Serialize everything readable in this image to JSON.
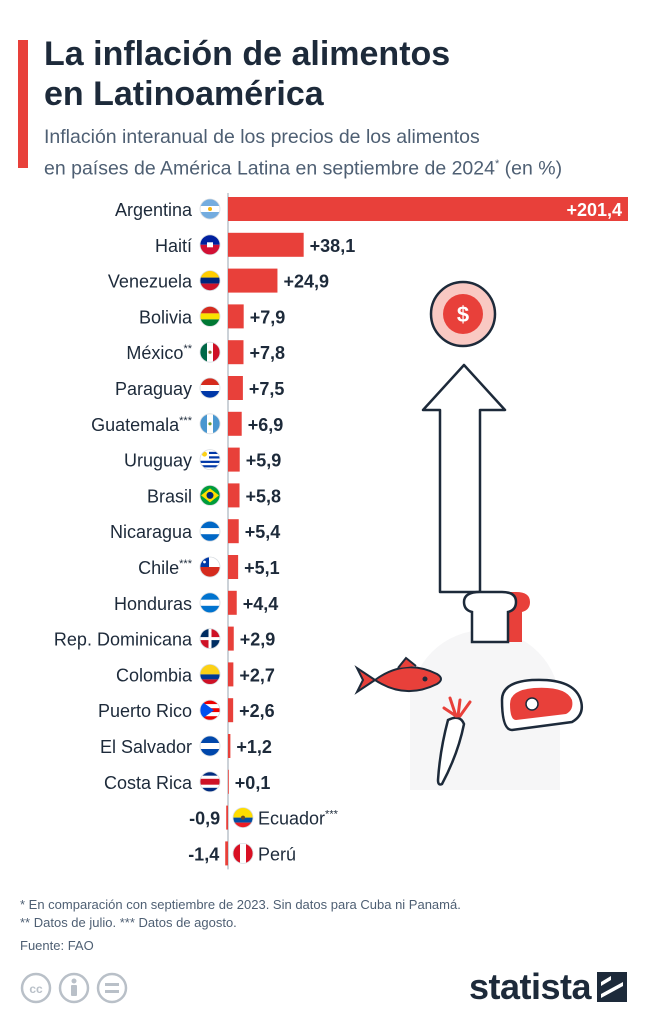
{
  "header": {
    "title_line1": "La inflación de alimentos",
    "title_line2": "en Latinoamérica",
    "subtitle_line1": "Inflación interanual de los precios de los alimentos",
    "subtitle_line2": "en países de América Latina en septiembre de 2024",
    "subtitle_mark": "*",
    "subtitle_unit": " (en %)"
  },
  "chart_data": {
    "type": "bar",
    "orientation": "horizontal",
    "title": "La inflación de alimentos en Latinoamérica",
    "unit": "%",
    "bar_color": "#e8403a",
    "xlim": [
      -1.4,
      201.4
    ],
    "categories": [
      "Argentina",
      "Haití",
      "Venezuela",
      "Bolivia",
      "México",
      "Paraguay",
      "Guatemala",
      "Uruguay",
      "Brasil",
      "Nicaragua",
      "Chile",
      "Honduras",
      "Rep. Dominicana",
      "Colombia",
      "Puerto Rico",
      "El Salvador",
      "Costa Rica",
      "Ecuador",
      "Perú"
    ],
    "category_marks": [
      "",
      "",
      "",
      "",
      "**",
      "",
      "***",
      "",
      "",
      "",
      "***",
      "",
      "",
      "",
      "",
      "",
      "",
      "***",
      ""
    ],
    "values": [
      201.4,
      38.1,
      24.9,
      7.9,
      7.8,
      7.5,
      6.9,
      5.9,
      5.8,
      5.4,
      5.1,
      4.4,
      2.9,
      2.7,
      2.6,
      1.2,
      0.1,
      -0.9,
      -1.4
    ],
    "value_labels": [
      "+201,4",
      "+38,1",
      "+24,9",
      "+7,9",
      "+7,8",
      "+7,5",
      "+6,9",
      "+5,9",
      "+5,8",
      "+5,4",
      "+5,1",
      "+4,4",
      "+2,9",
      "+2,7",
      "+2,6",
      "+1,2",
      "+0,1",
      "-0,9",
      "-1,4"
    ],
    "flag_icons": [
      "argentina-flag-icon",
      "haiti-flag-icon",
      "venezuela-flag-icon",
      "bolivia-flag-icon",
      "mexico-flag-icon",
      "paraguay-flag-icon",
      "guatemala-flag-icon",
      "uruguay-flag-icon",
      "brazil-flag-icon",
      "nicaragua-flag-icon",
      "chile-flag-icon",
      "honduras-flag-icon",
      "dominican-republic-flag-icon",
      "colombia-flag-icon",
      "puerto-rico-flag-icon",
      "el-salvador-flag-icon",
      "costa-rica-flag-icon",
      "ecuador-flag-icon",
      "peru-flag-icon"
    ]
  },
  "illustration": {
    "icons": [
      "dollar-coin-icon",
      "up-arrow-icon",
      "bread-icon",
      "fish-icon",
      "steak-icon",
      "carrot-icon"
    ]
  },
  "footnotes": {
    "line1": "*   En comparación con septiembre de 2023. Sin datos para Cuba ni Panamá.",
    "line2": "** Datos de julio.    *** Datos de agosto.",
    "source": "Fuente: FAO"
  },
  "brand": {
    "name": "statista",
    "license_icons": [
      "cc-icon",
      "attribution-icon",
      "no-derivatives-icon"
    ]
  }
}
